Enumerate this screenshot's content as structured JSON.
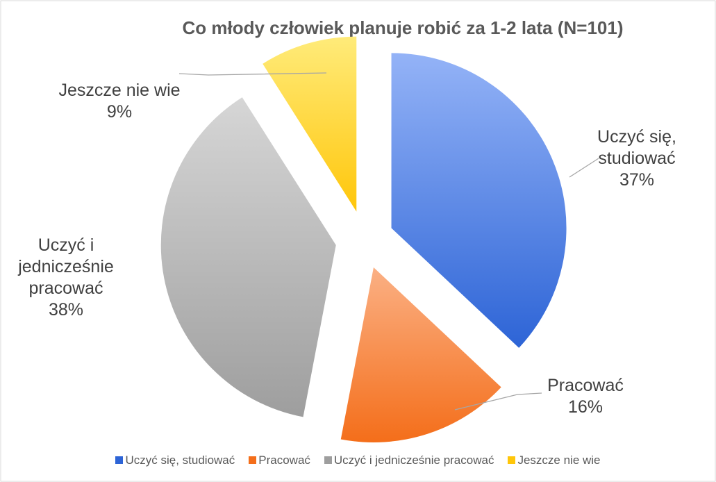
{
  "chart_data": {
    "type": "pie",
    "title": "Co młody człowiek planuje robić za 1-2 lata (N=101)",
    "categories": [
      "Uczyć się, studiować",
      "Pracować",
      "Uczyć i jednicześnie pracować",
      "Jeszcze nie wie"
    ],
    "values": [
      37,
      16,
      38,
      9
    ],
    "value_labels": [
      "37%",
      "16%",
      "38%",
      "9%"
    ],
    "colors": [
      [
        "#94b3f7",
        "#2d64d6"
      ],
      [
        "#fbb084",
        "#f46e1a"
      ],
      [
        "#d6d6d6",
        "#9e9e9e"
      ],
      [
        "#ffeb7a",
        "#ffc60a"
      ]
    ],
    "legend": "bottom"
  }
}
